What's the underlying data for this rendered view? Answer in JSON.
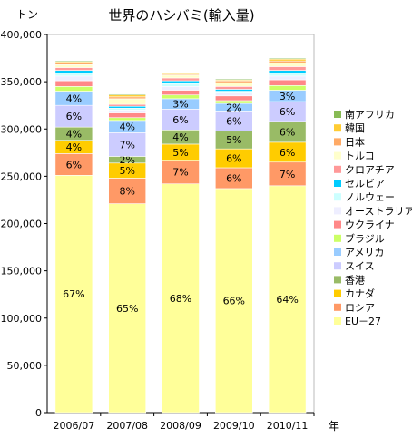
{
  "chart_data": {
    "type": "bar",
    "stacked": true,
    "title": "世界のハシバミ(輸入量)",
    "ylabel": "トン",
    "xlabel": "年",
    "ylim": [
      0,
      400000
    ],
    "yticks": [
      "0",
      "50,000",
      "100,000",
      "150,000",
      "200,000",
      "250,000",
      "300,000",
      "350,000",
      "400,000"
    ],
    "categories": [
      "2006/07",
      "2007/08",
      "2008/09",
      "2009/10",
      "2010/11"
    ],
    "legend_position": "right",
    "grid": false,
    "series": [
      {
        "name": "EU－27",
        "color": "#ffff99",
        "values": [
          251000,
          221000,
          242000,
          237000,
          240000
        ],
        "labels": [
          "67%",
          "65%",
          "68%",
          "66%",
          "64%"
        ]
      },
      {
        "name": "ロシア",
        "color": "#ff9966",
        "values": [
          23000,
          27000,
          25000,
          22000,
          25000
        ],
        "labels": [
          "6%",
          "8%",
          "7%",
          "6%",
          "7%"
        ]
      },
      {
        "name": "カナダ",
        "color": "#ffcc00",
        "values": [
          14000,
          16000,
          17000,
          20000,
          21000
        ],
        "labels": [
          "4%",
          "5%",
          "5%",
          "6%",
          "6%"
        ]
      },
      {
        "name": "香港",
        "color": "#99bb66",
        "values": [
          14000,
          7000,
          15000,
          19000,
          22000
        ],
        "labels": [
          "4%",
          "2%",
          "4%",
          "5%",
          "6%"
        ]
      },
      {
        "name": "スイス",
        "color": "#ccccff",
        "values": [
          23000,
          25000,
          22000,
          21000,
          21000
        ],
        "labels": [
          "6%",
          "7%",
          "6%",
          "6%",
          "6%"
        ]
      },
      {
        "name": "アメリカ",
        "color": "#99ccff",
        "values": [
          15000,
          13000,
          11000,
          8000,
          12000
        ],
        "labels": [
          "4%",
          "4%",
          "3%",
          "2%",
          "3%"
        ]
      },
      {
        "name": "ブラジル",
        "color": "#ccff66",
        "values": [
          5000,
          3000,
          4000,
          3000,
          5000
        ],
        "labels": [
          "",
          "",
          "",
          "",
          ""
        ]
      },
      {
        "name": "ウクライナ",
        "color": "#ff8888",
        "values": [
          6000,
          5000,
          5000,
          5000,
          6000
        ],
        "labels": [
          "",
          "",
          "",
          "",
          ""
        ]
      },
      {
        "name": "オーストラリア",
        "color": "#eeeeff",
        "values": [
          5000,
          3000,
          4000,
          3000,
          4000
        ],
        "labels": [
          "",
          "",
          "",
          "",
          ""
        ]
      },
      {
        "name": "ノルウェー",
        "color": "#ccffff",
        "values": [
          3000,
          2000,
          3000,
          2000,
          3000
        ],
        "labels": [
          "",
          "",
          "",
          "",
          ""
        ]
      },
      {
        "name": "セルビア",
        "color": "#00ccff",
        "values": [
          3000,
          2000,
          3000,
          2000,
          3000
        ],
        "labels": [
          "",
          "",
          "",
          "",
          ""
        ]
      },
      {
        "name": "クロアチア",
        "color": "#ff9999",
        "values": [
          3000,
          2000,
          3000,
          3000,
          4000
        ],
        "labels": [
          "",
          "",
          "",
          "",
          ""
        ]
      },
      {
        "name": "トルコ",
        "color": "#ffffcc",
        "values": [
          3000,
          6000,
          3000,
          4000,
          4000
        ],
        "labels": [
          "",
          "",
          "",
          "",
          ""
        ]
      },
      {
        "name": "日本",
        "color": "#ffaa66",
        "values": [
          2000,
          2000,
          1000,
          2000,
          2000
        ],
        "labels": [
          "",
          "",
          "",
          "",
          ""
        ]
      },
      {
        "name": "韓国",
        "color": "#ffcc33",
        "values": [
          1000,
          2000,
          1000,
          1000,
          2000
        ],
        "labels": [
          "",
          "",
          "",
          "",
          ""
        ]
      },
      {
        "name": "南アフリカ",
        "color": "#88bb55",
        "values": [
          1000,
          1000,
          1000,
          1000,
          1000
        ],
        "labels": [
          "",
          "",
          "",
          "",
          ""
        ]
      }
    ]
  }
}
